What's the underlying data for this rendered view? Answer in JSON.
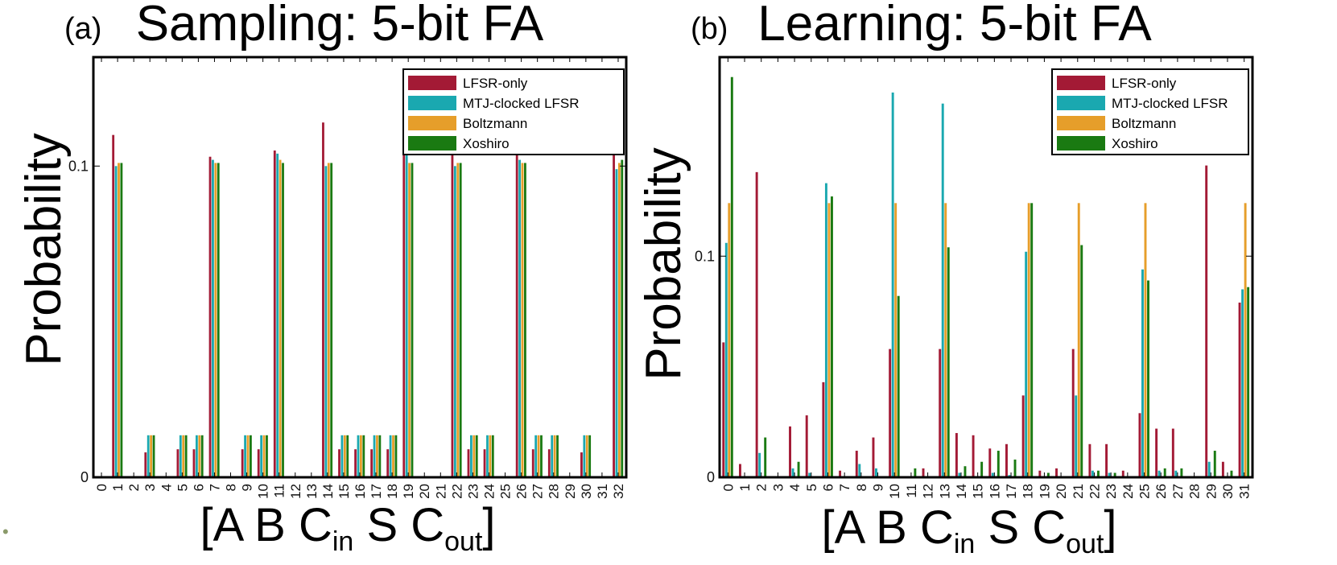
{
  "colors": {
    "LFSR-only": "#a31a35",
    "MTJ-clocked LFSR": "#1aa8b0",
    "Boltzmann": "#e69e2a",
    "Xoshiro": "#1a7a12"
  },
  "footnote_glyph": "•",
  "chart_data": [
    {
      "type": "bar",
      "panel": "(a)",
      "title": "Sampling: 5-bit FA",
      "ylabel": "Probability",
      "xlabel": {
        "main": "[A B C",
        "sub1": "in",
        "mid": " S C",
        "sub2": "out",
        "end": "]"
      },
      "ylim": [
        0,
        0.135
      ],
      "yticks": [
        0,
        0.1
      ],
      "ytick_labels": [
        "0",
        "0.1"
      ],
      "categories": [
        "0",
        "1",
        "2",
        "3",
        "4",
        "5",
        "6",
        "7",
        "8",
        "9",
        "10",
        "11",
        "12",
        "13",
        "14",
        "15",
        "16",
        "17",
        "18",
        "19",
        "20",
        "21",
        "22",
        "23",
        "24",
        "25",
        "26",
        "27",
        "28",
        "29",
        "30",
        "31",
        "32"
      ],
      "legend": [
        "LFSR-only",
        "MTJ-clocked LFSR",
        "Boltzmann",
        "Xoshiro"
      ],
      "legend_position": "top-right",
      "series": [
        {
          "name": "LFSR-only",
          "values": [
            0,
            0.11,
            0,
            0.008,
            0,
            0.009,
            0.009,
            0.103,
            0,
            0.009,
            0.009,
            0.105,
            0,
            0,
            0.114,
            0.009,
            0.009,
            0.009,
            0.009,
            0.113,
            0,
            0,
            0.106,
            0.009,
            0.009,
            0,
            0.105,
            0.009,
            0.009,
            0,
            0.008,
            0,
            0.112
          ]
        },
        {
          "name": "MTJ-clocked LFSR",
          "values": [
            0,
            0.1,
            0,
            0.0135,
            0,
            0.0135,
            0.0135,
            0.102,
            0,
            0.0135,
            0.0135,
            0.104,
            0,
            0,
            0.1,
            0.0135,
            0.0135,
            0.0135,
            0.0135,
            0.104,
            0,
            0,
            0.1,
            0.0135,
            0.0135,
            0,
            0.102,
            0.0135,
            0.0135,
            0,
            0.0135,
            0,
            0.099
          ]
        },
        {
          "name": "Boltzmann",
          "values": [
            0,
            0.101,
            0,
            0.0135,
            0,
            0.0135,
            0.0135,
            0.101,
            0,
            0.0135,
            0.0135,
            0.102,
            0,
            0,
            0.101,
            0.0135,
            0.0135,
            0.0135,
            0.0135,
            0.101,
            0,
            0,
            0.101,
            0.0135,
            0.0135,
            0,
            0.101,
            0.0135,
            0.0135,
            0,
            0.0135,
            0,
            0.101
          ]
        },
        {
          "name": "Xoshiro",
          "values": [
            0,
            0.101,
            0,
            0.0135,
            0,
            0.0135,
            0.0135,
            0.101,
            0,
            0.0135,
            0.0135,
            0.101,
            0,
            0,
            0.101,
            0.0135,
            0.0135,
            0.0135,
            0.0135,
            0.101,
            0,
            0,
            0.101,
            0.0135,
            0.0135,
            0,
            0.101,
            0.0135,
            0.0135,
            0,
            0.0135,
            0,
            0.102
          ]
        }
      ]
    },
    {
      "type": "bar",
      "panel": "(b)",
      "title": "Learning: 5-bit FA",
      "ylabel": "Probability",
      "xlabel": {
        "main": "[A B C",
        "sub1": "in",
        "mid": " S C",
        "sub2": "out",
        "end": "]"
      },
      "ylim": [
        0,
        0.19
      ],
      "yticks": [
        0,
        0.1
      ],
      "ytick_labels": [
        "0",
        "0.1"
      ],
      "categories": [
        "0",
        "1",
        "2",
        "3",
        "4",
        "5",
        "6",
        "7",
        "8",
        "9",
        "10",
        "11",
        "12",
        "13",
        "14",
        "15",
        "16",
        "17",
        "18",
        "19",
        "20",
        "21",
        "22",
        "23",
        "24",
        "25",
        "26",
        "27",
        "28",
        "29",
        "30",
        "31"
      ],
      "legend": [
        "LFSR-only",
        "MTJ-clocked LFSR",
        "Boltzmann",
        "Xoshiro"
      ],
      "legend_position": "top-right",
      "series": [
        {
          "name": "LFSR-only",
          "values": [
            0.061,
            0.006,
            0.138,
            0,
            0.023,
            0.028,
            0.043,
            0.003,
            0.012,
            0.018,
            0.058,
            0,
            0.004,
            0.058,
            0.02,
            0.019,
            0.013,
            0.015,
            0.037,
            0.003,
            0.004,
            0.058,
            0.015,
            0.015,
            0.003,
            0.029,
            0.022,
            0.022,
            0,
            0.141,
            0.007,
            0.079
          ]
        },
        {
          "name": "MTJ-clocked LFSR",
          "values": [
            0.106,
            0,
            0.011,
            0,
            0.004,
            0.002,
            0.133,
            0,
            0.006,
            0.004,
            0.174,
            0,
            0,
            0.169,
            0.002,
            0,
            0.002,
            0.001,
            0.102,
            0,
            0,
            0.037,
            0.003,
            0.002,
            0,
            0.094,
            0.003,
            0.003,
            0,
            0.007,
            0,
            0.085
          ]
        },
        {
          "name": "Boltzmann",
          "values": [
            0.124,
            0,
            0,
            0,
            0,
            0,
            0.124,
            0,
            0,
            0,
            0.124,
            0,
            0,
            0.124,
            0,
            0,
            0,
            0,
            0.124,
            0,
            0,
            0.124,
            0,
            0,
            0,
            0.124,
            0,
            0,
            0,
            0,
            0,
            0.124
          ]
        },
        {
          "name": "Xoshiro",
          "values": [
            0.181,
            0,
            0.018,
            0,
            0.007,
            0,
            0.127,
            0,
            0,
            0,
            0.082,
            0.004,
            0,
            0.104,
            0.005,
            0.007,
            0.012,
            0.008,
            0.124,
            0.002,
            0,
            0.105,
            0.003,
            0.002,
            0,
            0.089,
            0.004,
            0.004,
            0,
            0.012,
            0.003,
            0.086
          ]
        }
      ]
    }
  ]
}
